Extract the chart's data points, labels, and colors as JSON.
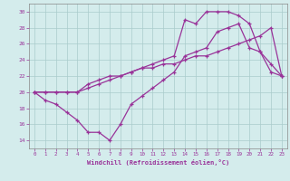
{
  "xlabel": "Windchill (Refroidissement éolien,°C)",
  "bg_color": "#d4ecec",
  "line_color": "#993399",
  "grid_color": "#aacccc",
  "xlim": [
    -0.5,
    23.5
  ],
  "ylim": [
    13.0,
    31.0
  ],
  "yticks": [
    14,
    16,
    18,
    20,
    22,
    24,
    26,
    28,
    30
  ],
  "xticks": [
    0,
    1,
    2,
    3,
    4,
    5,
    6,
    7,
    8,
    9,
    10,
    11,
    12,
    13,
    14,
    15,
    16,
    17,
    18,
    19,
    20,
    21,
    22,
    23
  ],
  "line1_x": [
    0,
    1,
    2,
    3,
    4,
    5,
    6,
    7,
    8,
    9,
    10,
    11,
    12,
    13,
    14,
    15,
    16,
    17,
    18,
    19,
    20,
    21,
    22,
    23
  ],
  "line1_y": [
    20,
    19.0,
    18.5,
    17.5,
    16.5,
    15.0,
    15.0,
    14.0,
    16.0,
    18.5,
    19.5,
    20.5,
    21.5,
    22.5,
    24.5,
    25.0,
    25.5,
    27.5,
    28.0,
    28.5,
    25.5,
    25.0,
    23.5,
    22.0
  ],
  "line2_x": [
    0,
    1,
    2,
    3,
    4,
    5,
    6,
    7,
    8,
    9,
    10,
    11,
    12,
    13,
    14,
    15,
    16,
    17,
    18,
    19,
    20,
    21,
    22,
    23
  ],
  "line2_y": [
    20,
    20,
    20,
    20,
    20,
    20.5,
    21,
    21.5,
    22,
    22.5,
    23,
    23,
    23.5,
    23.5,
    24,
    24.5,
    24.5,
    25,
    25.5,
    26,
    26.5,
    27,
    28,
    22
  ],
  "line3_x": [
    0,
    1,
    2,
    3,
    4,
    5,
    6,
    7,
    8,
    9,
    10,
    11,
    12,
    13,
    14,
    15,
    16,
    17,
    18,
    19,
    20,
    21,
    22,
    23
  ],
  "line3_y": [
    20,
    20,
    20,
    20,
    20,
    21,
    21.5,
    22,
    22,
    22.5,
    23,
    23.5,
    24,
    24.5,
    29,
    28.5,
    30,
    30,
    30,
    29.5,
    28.5,
    25,
    22.5,
    22
  ]
}
